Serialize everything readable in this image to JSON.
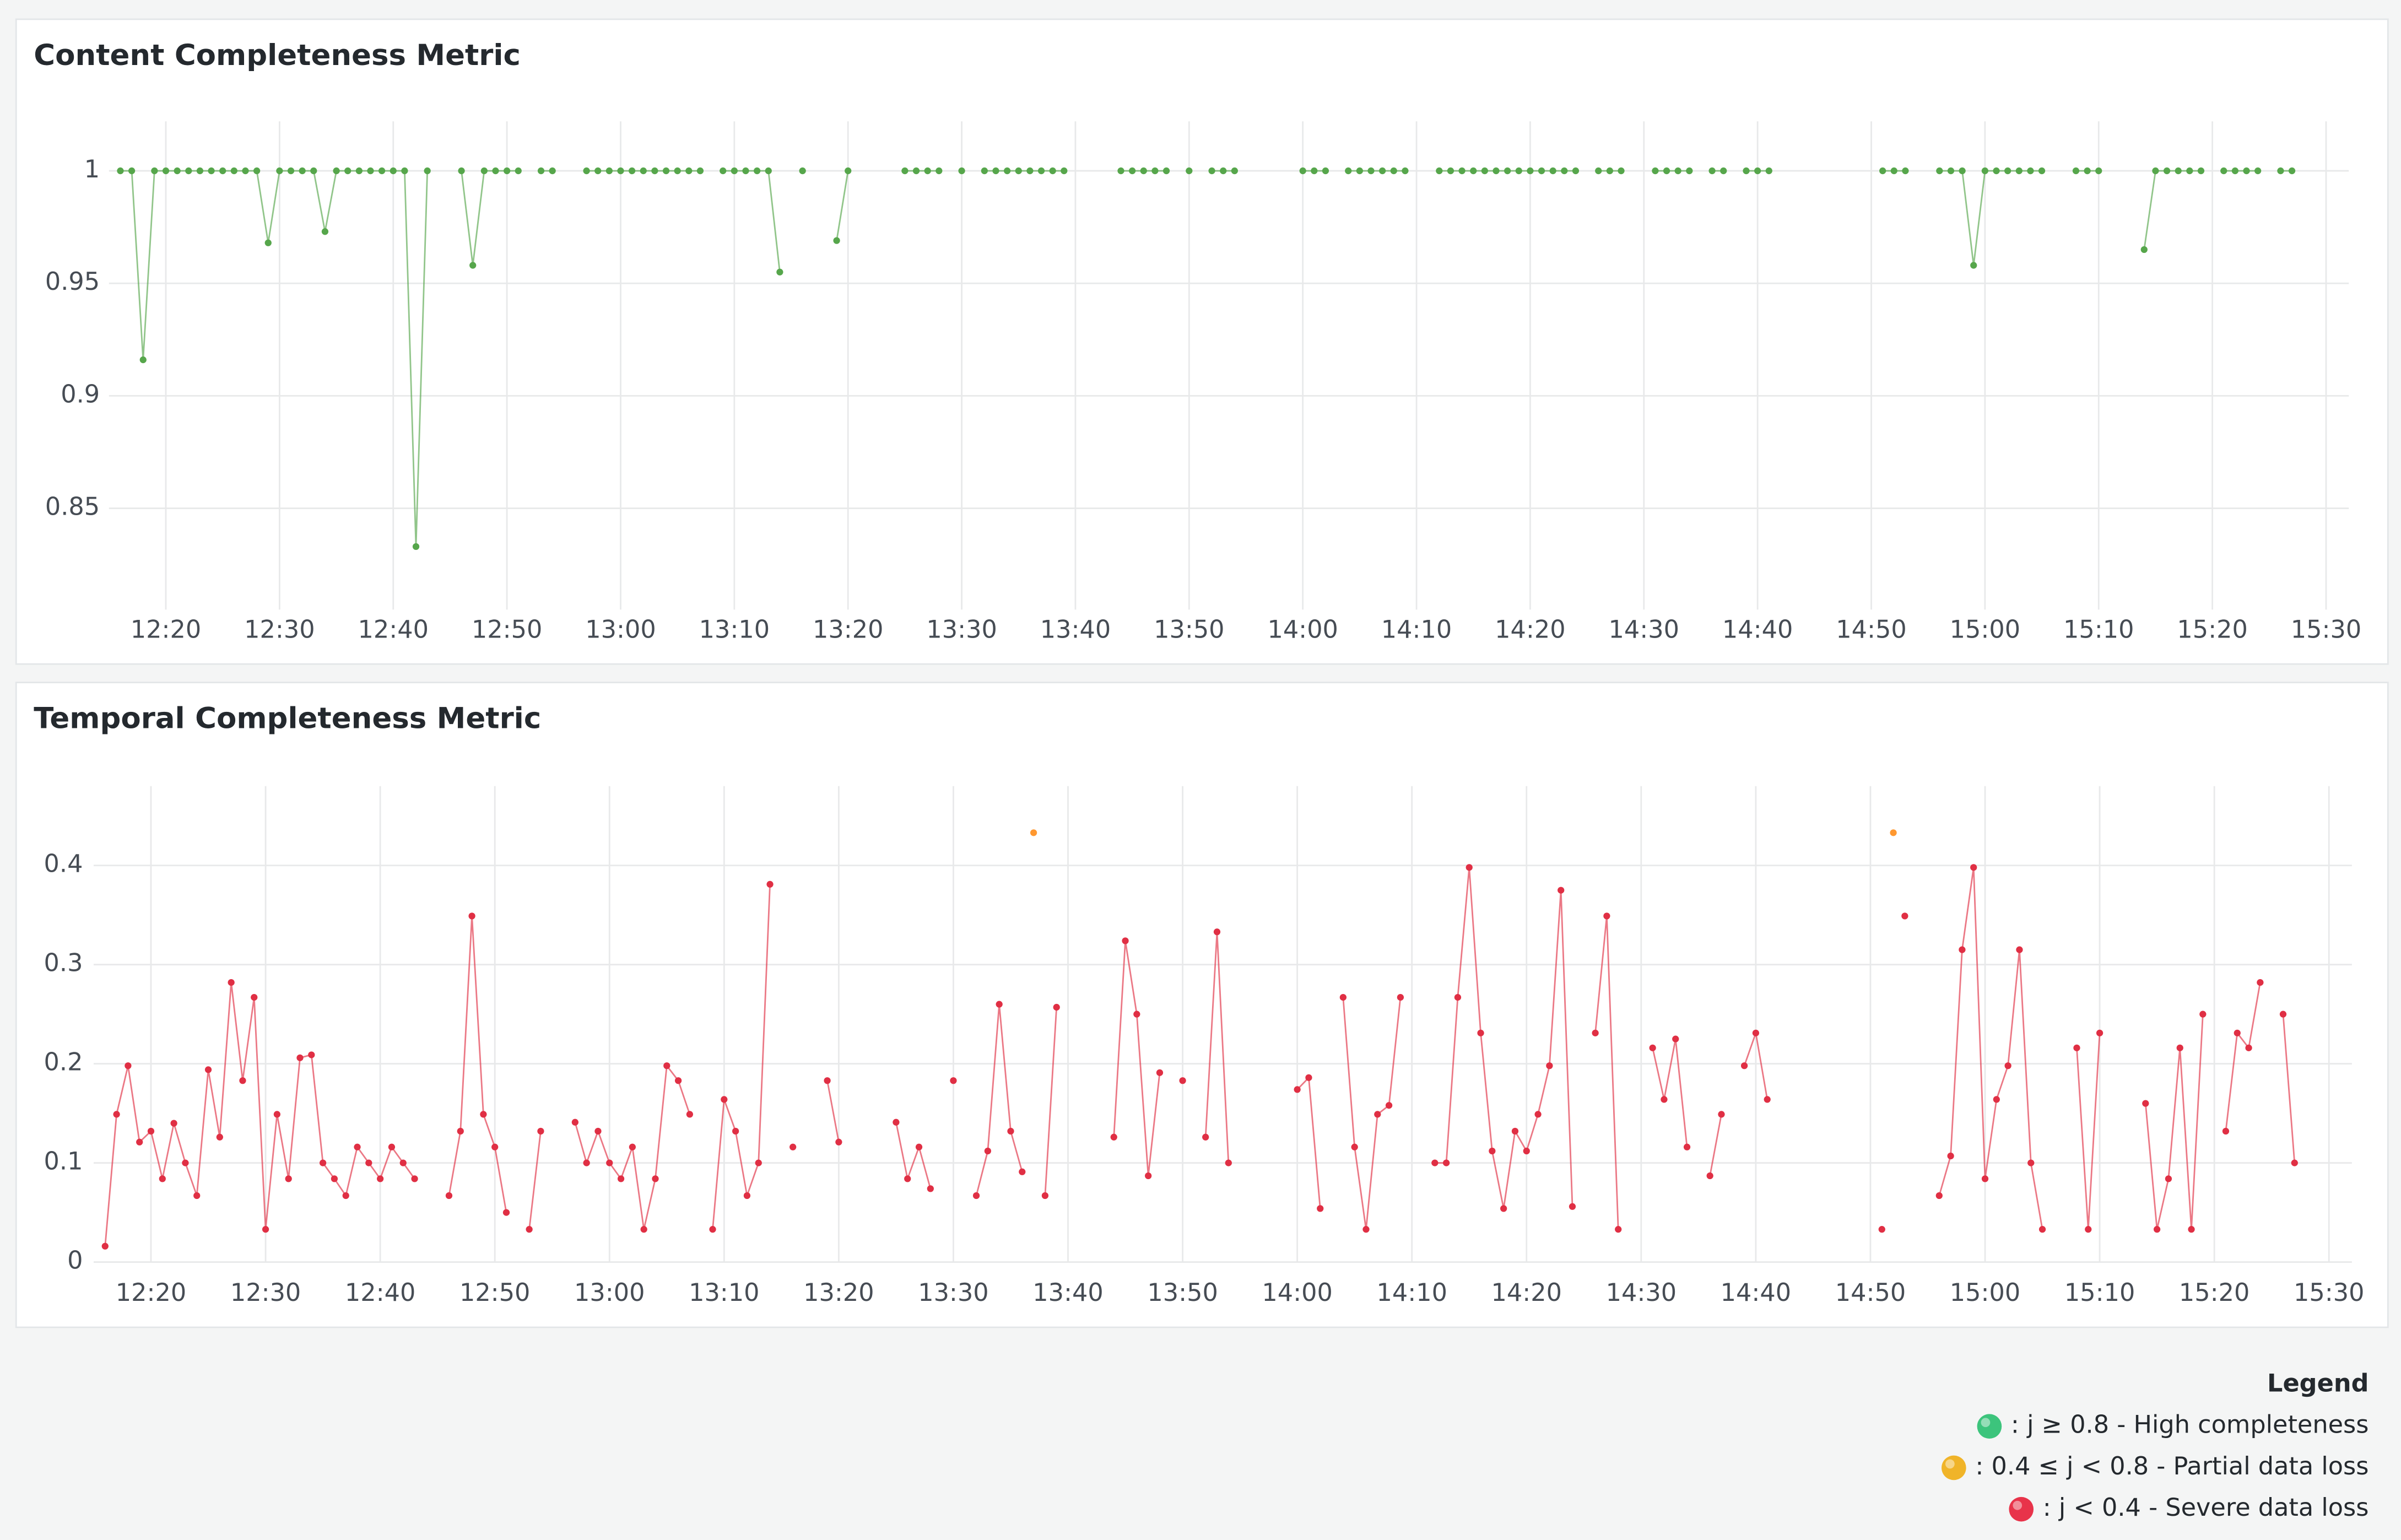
{
  "chart_data": [
    {
      "type": "line",
      "title": "Content Completeness Metric",
      "color": "#e02f44",
      "thresholds": [
        {
          "value": 0.4,
          "color": "#ff9830"
        },
        {
          "value": 0.8,
          "color": "#56a64b"
        }
      ],
      "xlim": [
        "12:15",
        "15:32"
      ],
      "xticks": [
        "12:20",
        "12:30",
        "12:40",
        "12:50",
        "13:00",
        "13:10",
        "13:20",
        "13:30",
        "13:40",
        "13:50",
        "14:00",
        "14:10",
        "14:20",
        "14:30",
        "14:40",
        "14:50",
        "15:00",
        "15:10",
        "15:20",
        "15:30"
      ],
      "ylim": [
        0.805,
        1.022
      ],
      "yticks": [
        0.85,
        0.9,
        0.95,
        1
      ],
      "grid": true,
      "x": [
        "12:16",
        "12:17",
        "12:18",
        "12:19",
        "12:20",
        "12:21",
        "12:22",
        "12:23",
        "12:24",
        "12:25",
        "12:26",
        "12:27",
        "12:28",
        "12:29",
        "12:30",
        "12:31",
        "12:32",
        "12:33",
        "12:34",
        "12:35",
        "12:36",
        "12:37",
        "12:38",
        "12:39",
        "12:40",
        "12:41",
        "12:42",
        "12:43",
        "12:44",
        "12:45",
        "12:46",
        "12:47",
        "12:48",
        "12:49",
        "12:50",
        "12:51",
        "12:52",
        "12:53",
        "12:54",
        "12:55",
        "12:56",
        "12:57",
        "12:58",
        "12:59",
        "13:00",
        "13:01",
        "13:02",
        "13:03",
        "13:04",
        "13:05",
        "13:06",
        "13:07",
        "13:08",
        "13:09",
        "13:10",
        "13:11",
        "13:12",
        "13:13",
        "13:14",
        "13:15",
        "13:16",
        "13:17",
        "13:18",
        "13:19",
        "13:20",
        "13:21",
        "13:22",
        "13:23",
        "13:24",
        "13:25",
        "13:26",
        "13:27",
        "13:28",
        "13:29",
        "13:30",
        "13:31",
        "13:32",
        "13:33",
        "13:34",
        "13:35",
        "13:36",
        "13:37",
        "13:38",
        "13:39",
        "13:40",
        "13:41",
        "13:42",
        "13:43",
        "13:44",
        "13:45",
        "13:46",
        "13:47",
        "13:48",
        "13:49",
        "13:50",
        "13:51",
        "13:52",
        "13:53",
        "13:54",
        "13:55",
        "13:56",
        "13:57",
        "13:58",
        "13:59",
        "14:00",
        "14:01",
        "14:02",
        "14:03",
        "14:04",
        "14:05",
        "14:06",
        "14:07",
        "14:08",
        "14:09",
        "14:10",
        "14:11",
        "14:12",
        "14:13",
        "14:14",
        "14:15",
        "14:16",
        "14:17",
        "14:18",
        "14:19",
        "14:20",
        "14:21",
        "14:22",
        "14:23",
        "14:24",
        "14:25",
        "14:26",
        "14:27",
        "14:28",
        "14:29",
        "14:30",
        "14:31",
        "14:32",
        "14:33",
        "14:34",
        "14:35",
        "14:36",
        "14:37",
        "14:38",
        "14:39",
        "14:40",
        "14:41",
        "14:42",
        "14:43",
        "14:44",
        "14:45",
        "14:46",
        "14:47",
        "14:48",
        "14:49",
        "14:50",
        "14:51",
        "14:52",
        "14:53",
        "14:54",
        "14:55",
        "14:56",
        "14:57",
        "14:58",
        "14:59",
        "15:00",
        "15:01",
        "15:02",
        "15:03",
        "15:04",
        "15:05",
        "15:06",
        "15:07",
        "15:08",
        "15:09",
        "15:10",
        "15:11",
        "15:12",
        "15:13",
        "15:14",
        "15:15",
        "15:16",
        "15:17",
        "15:18",
        "15:19",
        "15:20",
        "15:21",
        "15:22",
        "15:23",
        "15:24",
        "15:25",
        "15:26",
        "15:27"
      ],
      "values": [
        1,
        1,
        0.916,
        1,
        1,
        1,
        1,
        1,
        1,
        1,
        1,
        1,
        1,
        0.968,
        1,
        1,
        1,
        1,
        0.973,
        1,
        1,
        1,
        1,
        1,
        1,
        1,
        0.833,
        1,
        null,
        null,
        1,
        0.958,
        1,
        1,
        1,
        1,
        null,
        1,
        1,
        null,
        null,
        1,
        1,
        1,
        1,
        1,
        1,
        1,
        1,
        1,
        1,
        1,
        null,
        1,
        1,
        1,
        1,
        1,
        0.955,
        null,
        1,
        null,
        null,
        0.969,
        1,
        null,
        null,
        null,
        null,
        1,
        1,
        1,
        1,
        null,
        1,
        null,
        1,
        1,
        1,
        1,
        1,
        1,
        1,
        1,
        null,
        null,
        null,
        null,
        1,
        1,
        1,
        1,
        1,
        null,
        1,
        null,
        1,
        1,
        1,
        null,
        null,
        null,
        null,
        null,
        1,
        1,
        1,
        null,
        1,
        1,
        1,
        1,
        1,
        1,
        null,
        null,
        1,
        1,
        1,
        1,
        1,
        1,
        1,
        1,
        1,
        1,
        1,
        1,
        1,
        null,
        1,
        1,
        1,
        null,
        null,
        1,
        1,
        1,
        1,
        null,
        1,
        1,
        null,
        1,
        1,
        1,
        null,
        null,
        null,
        null,
        null,
        null,
        null,
        null,
        null,
        1,
        1,
        1,
        null,
        null,
        1,
        1,
        1,
        0.958,
        1,
        1,
        1,
        1,
        1,
        1,
        null,
        null,
        1,
        1,
        1,
        null,
        null,
        null,
        0.965,
        1,
        1,
        1,
        1,
        1,
        null,
        1,
        1,
        1,
        1,
        null,
        1,
        1
      ]
    },
    {
      "type": "line",
      "title": "Temporal Completeness Metric",
      "color": "#e02f44",
      "thresholds": [
        {
          "value": 0.4,
          "color": "#ff9830"
        },
        {
          "value": 0.8,
          "color": "#56a64b"
        }
      ],
      "xlim": [
        "12:15",
        "15:32"
      ],
      "xticks": [
        "12:20",
        "12:30",
        "12:40",
        "12:50",
        "13:00",
        "13:10",
        "13:20",
        "13:30",
        "13:40",
        "13:50",
        "14:00",
        "14:10",
        "14:20",
        "14:30",
        "14:40",
        "14:50",
        "15:00",
        "15:10",
        "15:20",
        "15:30"
      ],
      "ylim": [
        0,
        0.48
      ],
      "yticks": [
        0,
        0.1,
        0.2,
        0.3,
        0.4
      ],
      "grid": true,
      "x": [
        "12:16",
        "12:17",
        "12:18",
        "12:19",
        "12:20",
        "12:21",
        "12:22",
        "12:23",
        "12:24",
        "12:25",
        "12:26",
        "12:27",
        "12:28",
        "12:29",
        "12:30",
        "12:31",
        "12:32",
        "12:33",
        "12:34",
        "12:35",
        "12:36",
        "12:37",
        "12:38",
        "12:39",
        "12:40",
        "12:41",
        "12:42",
        "12:43",
        "12:44",
        "12:45",
        "12:46",
        "12:47",
        "12:48",
        "12:49",
        "12:50",
        "12:51",
        "12:52",
        "12:53",
        "12:54",
        "12:55",
        "12:56",
        "12:57",
        "12:58",
        "12:59",
        "13:00",
        "13:01",
        "13:02",
        "13:03",
        "13:04",
        "13:05",
        "13:06",
        "13:07",
        "13:08",
        "13:09",
        "13:10",
        "13:11",
        "13:12",
        "13:13",
        "13:14",
        "13:15",
        "13:16",
        "13:17",
        "13:18",
        "13:19",
        "13:20",
        "13:21",
        "13:22",
        "13:23",
        "13:24",
        "13:25",
        "13:26",
        "13:27",
        "13:28",
        "13:29",
        "13:30",
        "13:31",
        "13:32",
        "13:33",
        "13:34",
        "13:35",
        "13:36",
        "13:37",
        "13:38",
        "13:39",
        "13:40",
        "13:41",
        "13:42",
        "13:43",
        "13:44",
        "13:45",
        "13:46",
        "13:47",
        "13:48",
        "13:49",
        "13:50",
        "13:51",
        "13:52",
        "13:53",
        "13:54",
        "13:55",
        "13:56",
        "13:57",
        "13:58",
        "13:59",
        "14:00",
        "14:01",
        "14:02",
        "14:03",
        "14:04",
        "14:05",
        "14:06",
        "14:07",
        "14:08",
        "14:09",
        "14:10",
        "14:11",
        "14:12",
        "14:13",
        "14:14",
        "14:15",
        "14:16",
        "14:17",
        "14:18",
        "14:19",
        "14:20",
        "14:21",
        "14:22",
        "14:23",
        "14:24",
        "14:25",
        "14:26",
        "14:27",
        "14:28",
        "14:29",
        "14:30",
        "14:31",
        "14:32",
        "14:33",
        "14:34",
        "14:35",
        "14:36",
        "14:37",
        "14:38",
        "14:39",
        "14:40",
        "14:41",
        "14:42",
        "14:43",
        "14:44",
        "14:45",
        "14:46",
        "14:47",
        "14:48",
        "14:49",
        "14:50",
        "14:51",
        "14:52",
        "14:53",
        "14:54",
        "14:55",
        "14:56",
        "14:57",
        "14:58",
        "14:59",
        "15:00",
        "15:01",
        "15:02",
        "15:03",
        "15:04",
        "15:05",
        "15:06",
        "15:07",
        "15:08",
        "15:09",
        "15:10",
        "15:11",
        "15:12",
        "15:13",
        "15:14",
        "15:15",
        "15:16",
        "15:17",
        "15:18",
        "15:19",
        "15:20",
        "15:21",
        "15:22",
        "15:23",
        "15:24",
        "15:25",
        "15:26",
        "15:27"
      ],
      "values": [
        0.016,
        0.149,
        0.198,
        0.121,
        0.132,
        0.084,
        0.14,
        0.1,
        0.067,
        0.194,
        0.126,
        0.282,
        0.183,
        0.267,
        0.033,
        0.149,
        0.084,
        0.206,
        0.209,
        0.1,
        0.084,
        0.067,
        0.116,
        0.1,
        0.084,
        0.116,
        0.1,
        0.084,
        null,
        null,
        0.067,
        0.132,
        0.349,
        0.149,
        0.116,
        0.05,
        null,
        0.033,
        0.132,
        null,
        null,
        0.141,
        0.1,
        0.132,
        0.1,
        0.084,
        0.116,
        0.033,
        0.084,
        0.198,
        0.183,
        0.149,
        null,
        0.033,
        0.164,
        0.132,
        0.067,
        0.1,
        0.381,
        null,
        0.116,
        null,
        null,
        0.183,
        0.121,
        null,
        null,
        null,
        null,
        0.141,
        0.084,
        0.116,
        0.074,
        null,
        0.183,
        null,
        0.067,
        0.112,
        0.26,
        0.132,
        0.091,
        0.433,
        0.067,
        0.257,
        null,
        null,
        null,
        null,
        0.126,
        0.324,
        0.25,
        0.087,
        0.191,
        null,
        0.183,
        null,
        0.126,
        0.333,
        0.1,
        null,
        null,
        null,
        null,
        null,
        0.174,
        0.186,
        0.054,
        null,
        0.267,
        0.116,
        0.033,
        0.149,
        0.158,
        0.267,
        null,
        null,
        0.1,
        0.1,
        0.267,
        0.398,
        0.231,
        0.112,
        0.054,
        0.132,
        0.112,
        0.149,
        0.198,
        0.375,
        0.056,
        null,
        0.231,
        0.349,
        0.033,
        null,
        null,
        0.216,
        0.164,
        0.225,
        0.116,
        null,
        0.087,
        0.149,
        null,
        0.198,
        0.231,
        0.164,
        null,
        null,
        null,
        null,
        null,
        null,
        null,
        null,
        null,
        0.033,
        0.433,
        0.349,
        null,
        null,
        0.067,
        0.107,
        0.315,
        0.398,
        0.084,
        0.164,
        0.198,
        0.315,
        0.1,
        0.033,
        null,
        null,
        0.216,
        0.033,
        0.231,
        null,
        null,
        null,
        0.16,
        0.033,
        0.084,
        0.216,
        0.033,
        0.25,
        null,
        0.132,
        0.231,
        0.216,
        0.282,
        null,
        0.25,
        0.1
      ]
    }
  ],
  "legend": {
    "title": "Legend",
    "items": [
      {
        "label": ": j ≥ 0.8 - High completeness",
        "color": "#3cc47c"
      },
      {
        "label": ": 0.4 ≤ j < 0.8 - Partial data loss",
        "color": "#f0b429"
      },
      {
        "label": ": j < 0.4 - Severe data loss",
        "color": "#e8334a"
      }
    ]
  }
}
